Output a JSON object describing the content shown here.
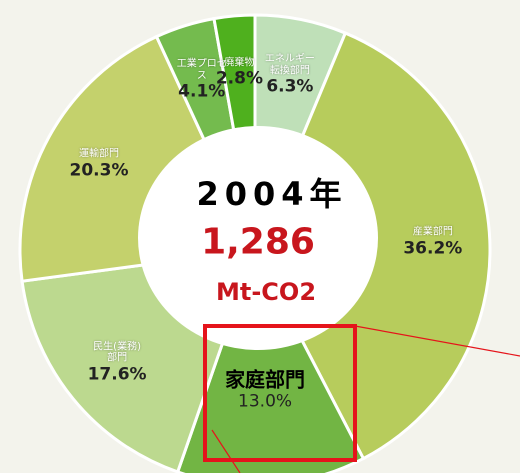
{
  "chart_data": {
    "type": "donut",
    "categories": [
      "エネルギー転換部門",
      "産業部門",
      "家庭部門",
      "民生(業務)部門",
      "運輸部門",
      "工業プロセス",
      "廃棄物"
    ],
    "values": [
      6.3,
      36.2,
      13.0,
      17.6,
      20.3,
      4.1,
      2.8
    ],
    "value_labels": [
      "6.3%",
      "36.2%",
      "13.0%",
      "17.6%",
      "20.3%",
      "4.1%",
      "2.8%"
    ],
    "colors": [
      "#bfe0b8",
      "#b7cc5c",
      "#72b544",
      "#bcd98f",
      "#c4d16c",
      "#74bb4e",
      "#4fb01e"
    ],
    "center_year": "2004年",
    "center_total": "1,286",
    "center_unit": "Mt-CO2",
    "highlight": 2
  }
}
